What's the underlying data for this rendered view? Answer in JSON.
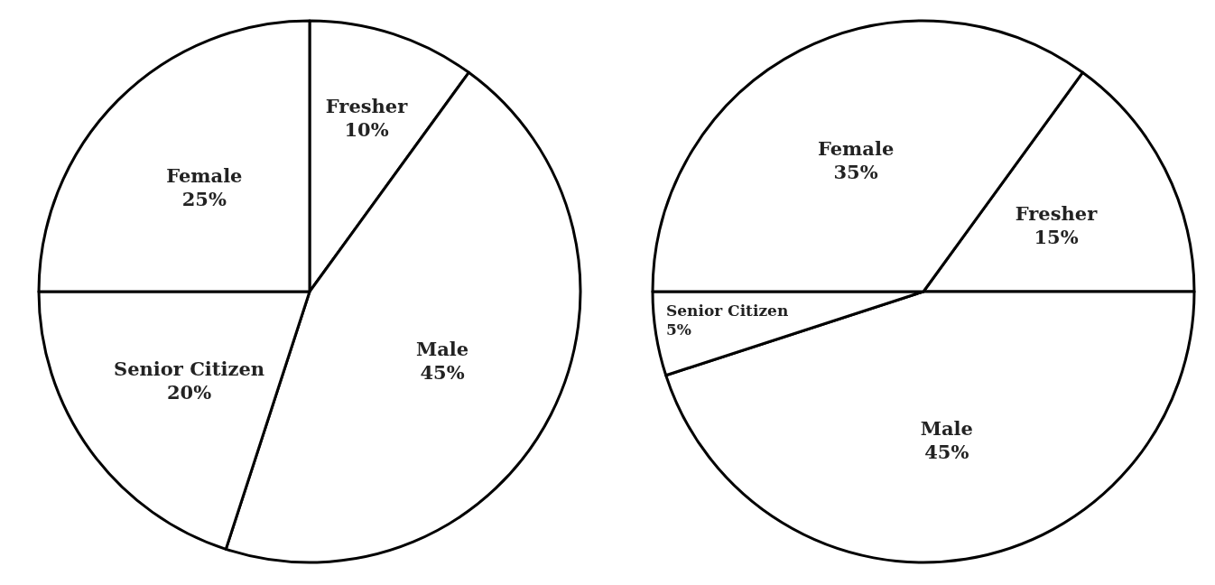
{
  "chart_data": [
    {
      "type": "pie",
      "categories": [
        "Fresher",
        "Male",
        "Senior Citizen",
        "Female"
      ],
      "values": [
        10,
        45,
        20,
        25
      ],
      "value_labels": [
        "10%",
        "45%",
        "20%",
        "25%"
      ],
      "colors": [
        "#ffffff",
        "#ffffff",
        "#ffffff",
        "#ffffff"
      ]
    },
    {
      "type": "pie",
      "categories": [
        "Fresher",
        "Male",
        "Senior Citizen",
        "Female"
      ],
      "values": [
        15,
        45,
        5,
        35
      ],
      "value_labels": [
        "15%",
        "45%",
        "5%",
        "35%"
      ],
      "colors": [
        "#ffffff",
        "#ffffff",
        "#ffffff",
        "#ffffff"
      ]
    }
  ]
}
